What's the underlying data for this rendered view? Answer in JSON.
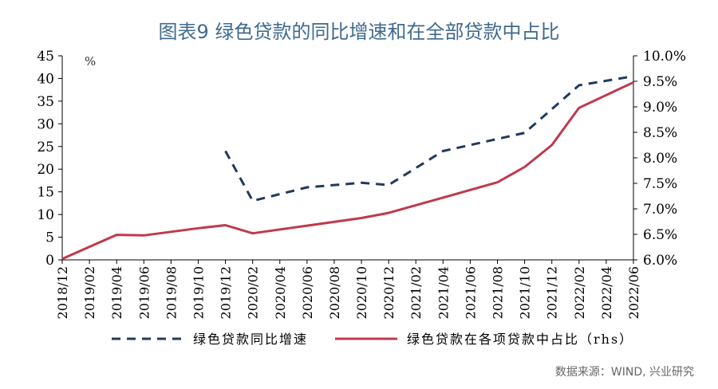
{
  "title": "图表9  绿色贷款的同比增速和在全部贷款中占比",
  "source": "数据来源：WIND, 兴业研究",
  "chart_data": {
    "type": "line",
    "x": [
      "2018/12",
      "2019/02",
      "2019/04",
      "2019/06",
      "2019/08",
      "2019/10",
      "2019/12",
      "2020/02",
      "2020/04",
      "2020/06",
      "2020/08",
      "2020/10",
      "2020/12",
      "2021/02",
      "2021/04",
      "2021/06",
      "2021/08",
      "2021/10",
      "2021/12",
      "2022/02",
      "2022/04",
      "2022/06"
    ],
    "y_left": {
      "unit_label": "%",
      "ticks": [
        0,
        5,
        10,
        15,
        20,
        25,
        30,
        35,
        40,
        45
      ],
      "range": [
        0,
        45
      ]
    },
    "y_right": {
      "ticks": [
        "6.0%",
        "6.5%",
        "7.0%",
        "7.5%",
        "8.0%",
        "8.5%",
        "9.0%",
        "9.5%",
        "10.0%"
      ],
      "range": [
        6.0,
        10.0
      ]
    },
    "series": [
      {
        "name": "绿色贷款同比增速",
        "axis": "left",
        "style": "dashed",
        "color": "#1f3a5f",
        "values": [
          null,
          null,
          null,
          null,
          null,
          null,
          24,
          13,
          null,
          16,
          null,
          17,
          16.5,
          null,
          24,
          null,
          null,
          28,
          null,
          38.5,
          null,
          40.5
        ]
      },
      {
        "name": "绿色贷款在各项贷款中占比（rhs）",
        "axis": "right",
        "style": "solid",
        "color": "#c0394b",
        "values": [
          6.02,
          null,
          6.49,
          6.48,
          null,
          6.62,
          6.68,
          6.52,
          null,
          6.67,
          null,
          6.82,
          6.92,
          null,
          7.22,
          null,
          7.52,
          7.82,
          8.25,
          8.98,
          null,
          9.48
        ]
      }
    ]
  }
}
